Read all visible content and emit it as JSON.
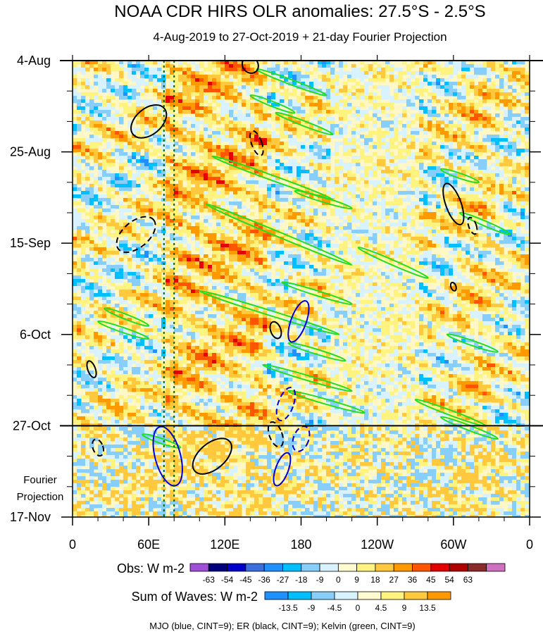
{
  "chart_data": {
    "type": "heatmap",
    "title": "NOAA CDR HIRS OLR anomalies: 27.5°S - 2.5°S",
    "subtitle": "4-Aug-2019 to 27-Oct-2019 + 21-day Fourier Projection",
    "projection_label": [
      "Fourier",
      "Projection"
    ],
    "x_ticks": [
      "0",
      "60E",
      "120E",
      "180",
      "120W",
      "60W",
      "0"
    ],
    "x_tick_lon": [
      0,
      60,
      120,
      180,
      240,
      300,
      360
    ],
    "y_ticks": [
      "4-Aug",
      "25-Aug",
      "15-Sep",
      "6-Oct",
      "27-Oct",
      "17-Nov"
    ],
    "y_tick_day": [
      0,
      21,
      42,
      63,
      84,
      105
    ],
    "obs_end_day": 84,
    "dotted_lines_lon": [
      72,
      80
    ],
    "obs_legend": {
      "label": "Obs: W m-2",
      "levels": [
        "-63",
        "-54",
        "-45",
        "-36",
        "-27",
        "-18",
        "-9",
        "0",
        "9",
        "18",
        "27",
        "36",
        "45",
        "54",
        "63"
      ],
      "colors": [
        "#a050d8",
        "#00007f",
        "#0000cc",
        "#3b6fe0",
        "#1e90ff",
        "#00bfff",
        "#87cefa",
        "#d8f2ff",
        "#fffbd0",
        "#fff380",
        "#ffc83d",
        "#ff9900",
        "#ff5500",
        "#e40000",
        "#b00000",
        "#8a2a2a",
        "#d070c0"
      ]
    },
    "waves_legend": {
      "label": "Sum of Waves: W m-2",
      "levels": [
        "-13.5",
        "-9",
        "-4.5",
        "0",
        "4.5",
        "9",
        "13.5"
      ],
      "colors": [
        "#1e90ff",
        "#00bfff",
        "#87cefa",
        "#d8f2ff",
        "#fffbd0",
        "#fff380",
        "#ffc83d",
        "#ff9900"
      ]
    },
    "footer_note": "MJO (blue, CINT=9); ER (black, CINT=9); Kelvin (green, CINT=9)",
    "wave_colors": {
      "mjo": "#0000dd",
      "er": "#000000",
      "kelvin": "#22dd22"
    },
    "kelvin_contours": [
      {
        "lon": 145,
        "day": 2,
        "len_lon": 55,
        "len_day": 6
      },
      {
        "lon": 140,
        "day": 8,
        "len_lon": 35,
        "len_day": 4
      },
      {
        "lon": 160,
        "day": 12,
        "len_lon": 45,
        "len_day": 5
      },
      {
        "lon": 110,
        "day": 22,
        "len_lon": 95,
        "len_day": 10
      },
      {
        "lon": 175,
        "day": 30,
        "len_lon": 45,
        "len_day": 4
      },
      {
        "lon": 105,
        "day": 33,
        "len_lon": 115,
        "len_day": 14
      },
      {
        "lon": 225,
        "day": 43,
        "len_lon": 55,
        "len_day": 7
      },
      {
        "lon": 165,
        "day": 51,
        "len_lon": 55,
        "len_day": 5
      },
      {
        "lon": 100,
        "day": 53,
        "len_lon": 110,
        "len_day": 10
      },
      {
        "lon": 25,
        "day": 57,
        "len_lon": 35,
        "len_day": 4
      },
      {
        "lon": 20,
        "day": 60,
        "len_lon": 40,
        "len_day": 4
      },
      {
        "lon": 170,
        "day": 65,
        "len_lon": 45,
        "len_day": 4
      },
      {
        "lon": 150,
        "day": 70,
        "len_lon": 70,
        "len_day": 6
      },
      {
        "lon": 170,
        "day": 76,
        "len_lon": 60,
        "len_day": 5
      },
      {
        "lon": 270,
        "day": 78,
        "len_lon": 55,
        "len_day": 6
      },
      {
        "lon": 295,
        "day": 63,
        "len_lon": 40,
        "len_day": 4
      },
      {
        "lon": 290,
        "day": 25,
        "len_lon": 30,
        "len_day": 3
      },
      {
        "lon": 305,
        "day": 35,
        "len_lon": 40,
        "len_day": 5
      },
      {
        "lon": 290,
        "day": 82,
        "len_lon": 45,
        "len_day": 5
      },
      {
        "lon": 55,
        "day": 86,
        "len_lon": 30,
        "len_day": 3
      }
    ],
    "mjo_contours": [
      {
        "lon": 75,
        "day": 91,
        "rx": 10,
        "ry": 7
      },
      {
        "lon": 168,
        "day": 79,
        "rx": 6,
        "ry": 4
      },
      {
        "lon": 180,
        "day": 87,
        "rx": 6,
        "ry": 3
      },
      {
        "lon": 165,
        "day": 94,
        "rx": 5,
        "ry": 4
      },
      {
        "lon": 178,
        "day": 60,
        "rx": 6,
        "ry": 5
      }
    ],
    "er_contours": [
      {
        "lon": 60,
        "day": 14,
        "rx": 16,
        "ry": 3
      },
      {
        "lon": 140,
        "day": 1,
        "rx": 6,
        "ry": 2
      },
      {
        "lon": 145,
        "day": 19,
        "rx": 4,
        "ry": 3
      },
      {
        "lon": 50,
        "day": 40,
        "rx": 18,
        "ry": 3
      },
      {
        "lon": 300,
        "day": 33,
        "rx": 6,
        "ry": 5
      },
      {
        "lon": 315,
        "day": 38,
        "rx": 3,
        "ry": 2
      },
      {
        "lon": 160,
        "day": 62,
        "rx": 4,
        "ry": 2
      },
      {
        "lon": 15,
        "day": 71,
        "rx": 3,
        "ry": 2
      },
      {
        "lon": 110,
        "day": 91,
        "rx": 18,
        "ry": 3
      },
      {
        "lon": 160,
        "day": 86,
        "rx": 5,
        "ry": 3
      },
      {
        "lon": 20,
        "day": 89,
        "rx": 4,
        "ry": 2
      },
      {
        "lon": 300,
        "day": 52,
        "rx": 2,
        "ry": 1
      }
    ]
  }
}
